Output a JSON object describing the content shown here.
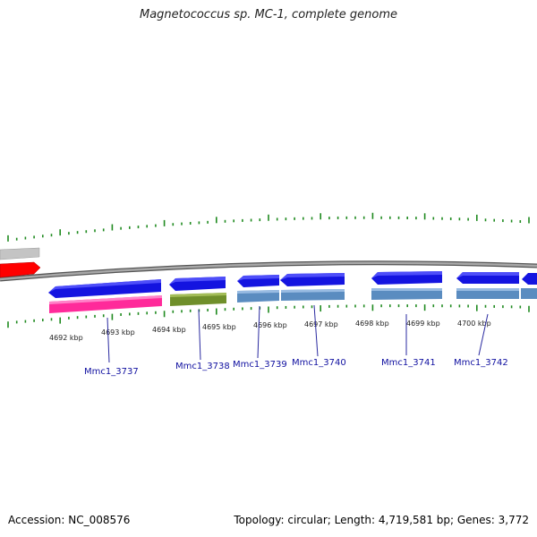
{
  "title": "Magnetococcus sp. MC-1, complete genome",
  "accession": "Accession: NC_008576",
  "summary": "Topology: circular; Length: 4,719,581 bp; Genes: 3,772",
  "colors": {
    "backbone": "#8a8a8a",
    "ticks": "#1f8a1f",
    "gene_blue": "#1010e6",
    "gene_steel": "#5a8cc0",
    "gene_pink": "#ff2a9a",
    "gene_olive": "#6f8f2a",
    "gene_red": "#ff0000",
    "gene_gray": "#c0c0c0",
    "gene_label": "#1010a0"
  },
  "kbp_labels": [
    "4692 kbp",
    "4693 kbp",
    "4694 kbp",
    "4695 kbp",
    "4696 kbp",
    "4697 kbp",
    "4698 kbp",
    "4699 kbp",
    "4700 kbp"
  ],
  "gene_labels": [
    "Mmc1_3737",
    "Mmc1_3738",
    "Mmc1_3739",
    "Mmc1_3740",
    "Mmc1_3741",
    "Mmc1_3742"
  ]
}
